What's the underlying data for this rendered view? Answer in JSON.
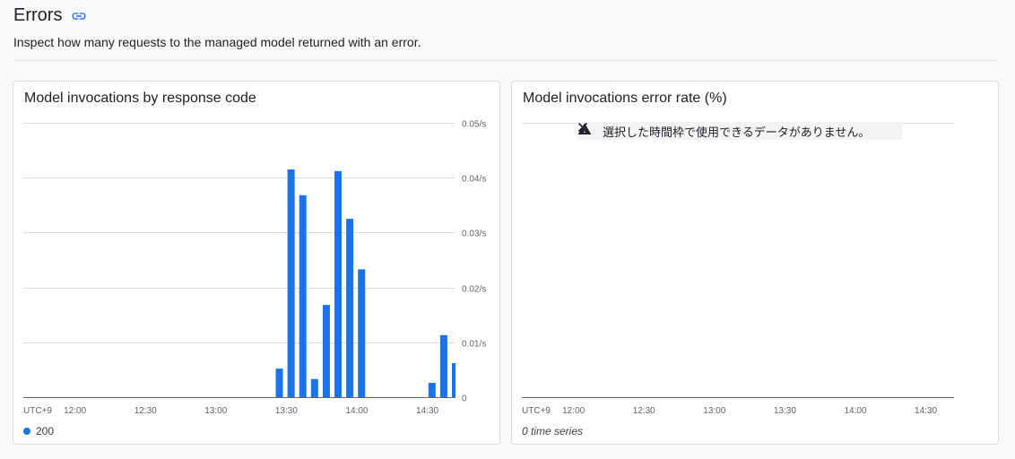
{
  "section": {
    "title": "Errors",
    "description": "Inspect how many requests to the managed model returned with an error."
  },
  "colors": {
    "bar": "#1a73e8",
    "grid": "#dadce0",
    "axis": "#5f6368"
  },
  "chart_left": {
    "title": "Model invocations by response code",
    "timezone_label": "UTC+9",
    "legend_label": "200"
  },
  "chart_right": {
    "title": "Model invocations error rate (%)",
    "timezone_label": "UTC+9",
    "notice": "選択した時間枠で使用できるデータがありません。",
    "empty_note": "0 time series"
  },
  "chart_data": [
    {
      "type": "bar",
      "title": "Model invocations by response code",
      "x_tick_labels": [
        "12:00",
        "12:30",
        "13:00",
        "13:30",
        "14:00",
        "14:30"
      ],
      "y_tick_labels": [
        "0.05/s",
        "0.04/s",
        "0.03/s",
        "0.02/s",
        "0.01/s",
        "0"
      ],
      "yticks": [
        0.05,
        0.04,
        0.03,
        0.02,
        0.01,
        0
      ],
      "ylim": [
        0,
        0.05
      ],
      "x_unit": "minutes since 12:00",
      "xlim": [
        -22,
        162
      ],
      "series": [
        {
          "name": "200",
          "x": [
            87,
            92,
            97,
            102,
            107,
            112,
            117,
            122,
            127,
            132,
            137,
            142,
            147,
            152,
            157,
            162
          ],
          "values": [
            0.0052,
            0.0415,
            0.0368,
            0.0033,
            0.0168,
            0.0412,
            0.0325,
            0.0233,
            0,
            0,
            0,
            0,
            0,
            0.0026,
            0.0113,
            0.0062
          ]
        }
      ],
      "grid": true,
      "legend": "bottom-left"
    },
    {
      "type": "line",
      "title": "Model invocations error rate (%)",
      "x_tick_labels": [
        "12:00",
        "12:30",
        "13:00",
        "13:30",
        "14:00",
        "14:30"
      ],
      "series": [],
      "grid": true
    }
  ]
}
